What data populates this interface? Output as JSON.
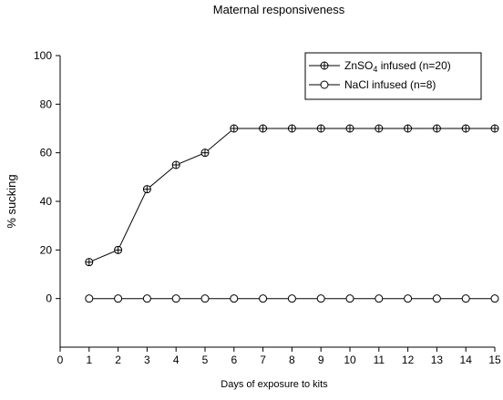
{
  "chart_data": {
    "type": "line",
    "title": "Maternal responsiveness",
    "xlabel": "Days of exposure to kits",
    "ylabel": "% sucking",
    "xlim": [
      0,
      15
    ],
    "ylim": [
      -20,
      100
    ],
    "x_ticks": [
      0,
      1,
      2,
      3,
      4,
      5,
      6,
      7,
      8,
      9,
      10,
      11,
      12,
      13,
      14,
      15
    ],
    "y_ticks": [
      0,
      20,
      40,
      60,
      80,
      100
    ],
    "grid": false,
    "legend_position": "top-right",
    "x": [
      1,
      2,
      3,
      4,
      5,
      6,
      7,
      8,
      9,
      10,
      11,
      12,
      13,
      14,
      15
    ],
    "series": [
      {
        "name": "ZnSO4 infused (n=20)",
        "legend_main": "ZnSO",
        "legend_sub": "4",
        "legend_rest": " infused (n=20)",
        "marker": "circle-cross",
        "values": [
          15,
          20,
          45,
          55,
          60,
          70,
          70,
          70,
          70,
          70,
          70,
          70,
          70,
          70,
          70
        ]
      },
      {
        "name": "NaCl infused (n=8)",
        "legend_main": "NaCl infused (n=8)",
        "legend_sub": "",
        "legend_rest": "",
        "marker": "open-circle",
        "values": [
          0,
          0,
          0,
          0,
          0,
          0,
          0,
          0,
          0,
          0,
          0,
          0,
          0,
          0,
          0
        ]
      }
    ]
  }
}
